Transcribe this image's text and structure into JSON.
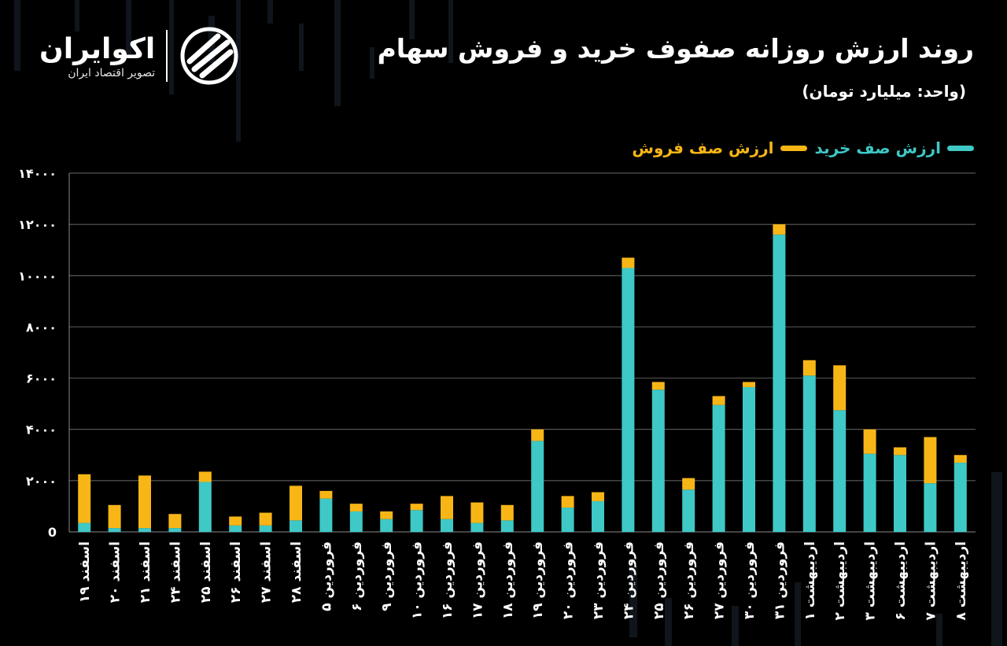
{
  "header": {
    "title": "روند ارزش روزانه صفوف خرید و فروش سهام",
    "subtitle": "(واحد: میلیارد تومان)"
  },
  "logo": {
    "name": "اکوایران",
    "tagline": "تصویر اقتصاد ایران"
  },
  "legend": {
    "buy_label": "ارزش صف خرید",
    "sell_label": "ارزش صف فروش"
  },
  "colors": {
    "buy": "#3ec8c6",
    "sell": "#f8b616",
    "grid": "#8a8a8a",
    "axis_text": "#ffffff"
  },
  "chart_data": {
    "type": "bar",
    "stacked": true,
    "ylim": [
      0,
      14000
    ],
    "yticks": [
      0,
      2000,
      4000,
      6000,
      8000,
      10000,
      12000,
      14000
    ],
    "ytick_labels": [
      "0",
      "۲۰۰۰",
      "۴۰۰۰",
      "۶۰۰۰",
      "۸۰۰۰",
      "۱۰۰۰۰",
      "۱۲۰۰۰",
      "۱۴۰۰۰"
    ],
    "grid": true,
    "categories": [
      "۱۹ اسفند",
      "۲۰ اسفند",
      "۲۱ اسفند",
      "۲۴ اسفند",
      "۲۵ اسفند",
      "۲۶ اسفند",
      "۲۷ اسفند",
      "۲۸ اسفند",
      "۵ فروردین",
      "۶ فروردین",
      "۹ فروردین",
      "۱۰ فروردین",
      "۱۶ فروردین",
      "۱۷ فروردین",
      "۱۸ فروردین",
      "۱۹ فروردین",
      "۲۰ فروردین",
      "۲۳ فروردین",
      "۲۴ فروردین",
      "۲۵ فروردین",
      "۲۶ فروردین",
      "۲۷ فروردین",
      "۳۰ فروردین",
      "۳۱ فروردین",
      "۱ اردیبهشت",
      "۲ اردیبهشت",
      "۳ اردیبهشت",
      "۶ اردیبهشت",
      "۷ اردیبهشت",
      "۸ اردیبهشت"
    ],
    "series": [
      {
        "name": "ارزش صف خرید",
        "values": [
          350,
          150,
          150,
          150,
          1950,
          250,
          250,
          450,
          1300,
          800,
          500,
          850,
          500,
          350,
          450,
          3550,
          950,
          1200,
          10300,
          5550,
          1650,
          4950,
          5650,
          11600,
          6100,
          4750,
          3050,
          3000,
          1900,
          2700
        ]
      },
      {
        "name": "ارزش صف فروش",
        "values": [
          1900,
          900,
          2050,
          550,
          400,
          350,
          500,
          1350,
          300,
          300,
          300,
          250,
          900,
          800,
          600,
          450,
          450,
          350,
          400,
          300,
          450,
          350,
          200,
          400,
          600,
          1750,
          950,
          300,
          1800,
          300
        ]
      }
    ]
  }
}
